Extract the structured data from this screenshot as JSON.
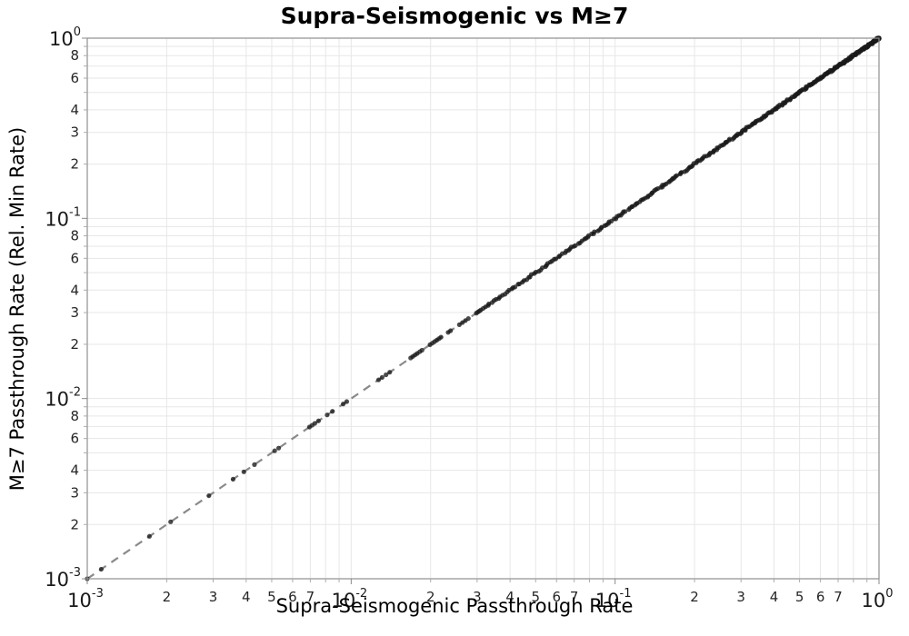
{
  "chart_data": {
    "type": "scatter",
    "title": "Supra-Seismogenic vs M≥7",
    "xlabel": "Supra-Seismogenic Passthrough Rate",
    "ylabel": "M≥7 Passthrough Rate (Rel. Min Rate)",
    "x_scale": "log10",
    "y_scale": "log10",
    "xlim": [
      0.001,
      1.0
    ],
    "ylim": [
      0.001,
      1.0
    ],
    "grid": true,
    "legend": "none",
    "major_exponents": [
      -3,
      -2,
      -1,
      0
    ],
    "minor_gridline_mantissas": [
      2,
      3,
      4,
      5,
      6,
      7,
      8,
      9
    ],
    "x_minor_tick_labels": [
      "2",
      "3",
      "4",
      "5",
      "6",
      "7"
    ],
    "y_minor_tick_labels": [
      "8",
      "6",
      "4",
      "3",
      "2"
    ],
    "identity_line": {
      "relation": "y = x",
      "style": "dashed",
      "color": "#8a8a8a",
      "width": 2.2,
      "dash": [
        9,
        7
      ],
      "from": 0.001,
      "to": 1.0
    },
    "marker": {
      "color": "#1a1a1a",
      "opacity": 0.78,
      "radius": 2.6
    },
    "y_equals_x_points": true,
    "points_x": [
      0.001,
      0.00113,
      0.00172,
      0.00207,
      0.00289,
      0.00357,
      0.00392,
      0.0043,
      0.00513,
      0.00531,
      0.00695,
      0.00711,
      0.00728,
      0.00752,
      0.00811,
      0.00849,
      0.00933,
      0.00962,
      0.0127,
      0.0131,
      0.01355,
      0.014,
      0.0168,
      0.0171,
      0.01745,
      0.0178,
      0.0182,
      0.01855,
      0.0199,
      0.0203,
      0.0207,
      0.0211,
      0.0215,
      0.0219,
      0.0233,
      0.0238,
      0.0257,
      0.0264,
      0.0271,
      0.0278,
      0.0298,
      0.0302,
      0.0306,
      0.031
    ],
    "dense_band": {
      "description": "near-continuous run of points along y=x",
      "log10_from": -1.5,
      "log10_to": 0.0,
      "count": 360,
      "density_bias": 2.0,
      "jitter_log10": 0.004,
      "seed": 11
    },
    "colors": {
      "grid": "#e7e7e7",
      "spine": "#909090",
      "tick": "#aaaaaa",
      "major_label": "#000000",
      "minor_label": "#262626",
      "background": "#ffffff"
    }
  }
}
